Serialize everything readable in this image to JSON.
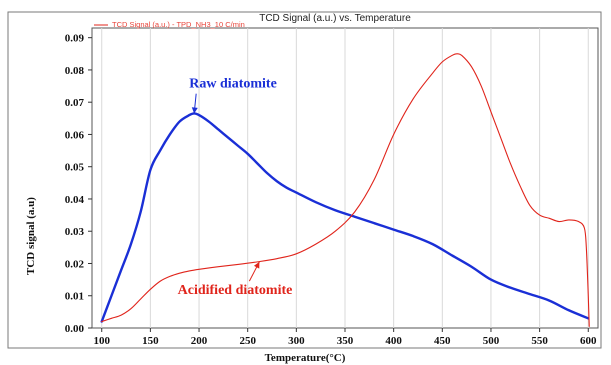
{
  "chart_data": {
    "type": "line",
    "title": "TCD Signal (a.u.) vs. Temperature",
    "legend": "TCD Signal (a.u.) - TPD_NH3_10 C/min",
    "xlabel": "Temperature(°C)",
    "ylabel": "TCD signal (a.u)",
    "xlim": [
      90,
      610
    ],
    "ylim": [
      0,
      0.093
    ],
    "x_ticks": [
      "100",
      "150",
      "200",
      "250",
      "300",
      "350",
      "400",
      "450",
      "500",
      "550",
      "600"
    ],
    "y_ticks": [
      "0.00",
      "0.01",
      "0.02",
      "0.03",
      "0.04",
      "0.05",
      "0.06",
      "0.07",
      "0.08",
      "0.09"
    ],
    "grid": "vertical",
    "series": [
      {
        "name": "Raw diatomite",
        "color": "#1a2fd6",
        "x": [
          100,
          110,
          120,
          130,
          140,
          150,
          160,
          170,
          180,
          190,
          195,
          200,
          210,
          220,
          230,
          240,
          250,
          260,
          270,
          280,
          290,
          300,
          320,
          340,
          360,
          380,
          400,
          420,
          440,
          460,
          480,
          500,
          520,
          540,
          560,
          580,
          600
        ],
        "y": [
          0.002,
          0.01,
          0.018,
          0.026,
          0.036,
          0.049,
          0.055,
          0.06,
          0.064,
          0.066,
          0.0665,
          0.066,
          0.064,
          0.0615,
          0.059,
          0.0565,
          0.054,
          0.051,
          0.048,
          0.0455,
          0.0435,
          0.042,
          0.039,
          0.0365,
          0.0345,
          0.0325,
          0.0305,
          0.0285,
          0.026,
          0.0225,
          0.019,
          0.015,
          0.0125,
          0.0105,
          0.0085,
          0.0055,
          0.003
        ]
      },
      {
        "name": "Acidified diatomite",
        "color": "#e0241b",
        "x": [
          100,
          110,
          120,
          130,
          140,
          150,
          160,
          170,
          180,
          190,
          200,
          220,
          240,
          260,
          280,
          300,
          320,
          340,
          360,
          380,
          400,
          420,
          440,
          450,
          460,
          465,
          470,
          480,
          490,
          500,
          510,
          520,
          530,
          540,
          550,
          560,
          570,
          580,
          590,
          596,
          598,
          600,
          601
        ],
        "y": [
          0.002,
          0.003,
          0.004,
          0.006,
          0.009,
          0.012,
          0.0145,
          0.016,
          0.017,
          0.0177,
          0.0182,
          0.019,
          0.0197,
          0.0205,
          0.0215,
          0.023,
          0.026,
          0.03,
          0.036,
          0.046,
          0.06,
          0.071,
          0.079,
          0.0825,
          0.0845,
          0.085,
          0.0845,
          0.081,
          0.075,
          0.067,
          0.059,
          0.051,
          0.044,
          0.038,
          0.035,
          0.034,
          0.033,
          0.0335,
          0.033,
          0.031,
          0.025,
          0.01,
          0.0005
        ]
      }
    ],
    "annotations": [
      {
        "text": "Raw diatomite",
        "color": "#1a2fd6",
        "x": 190,
        "y": 0.0745,
        "arrow_to": [
          195,
          0.0665
        ]
      },
      {
        "text": "Acidified diatomite",
        "color": "#e0241b",
        "x": 178,
        "y": 0.0105,
        "arrow_to": [
          262,
          0.0205
        ]
      }
    ]
  }
}
